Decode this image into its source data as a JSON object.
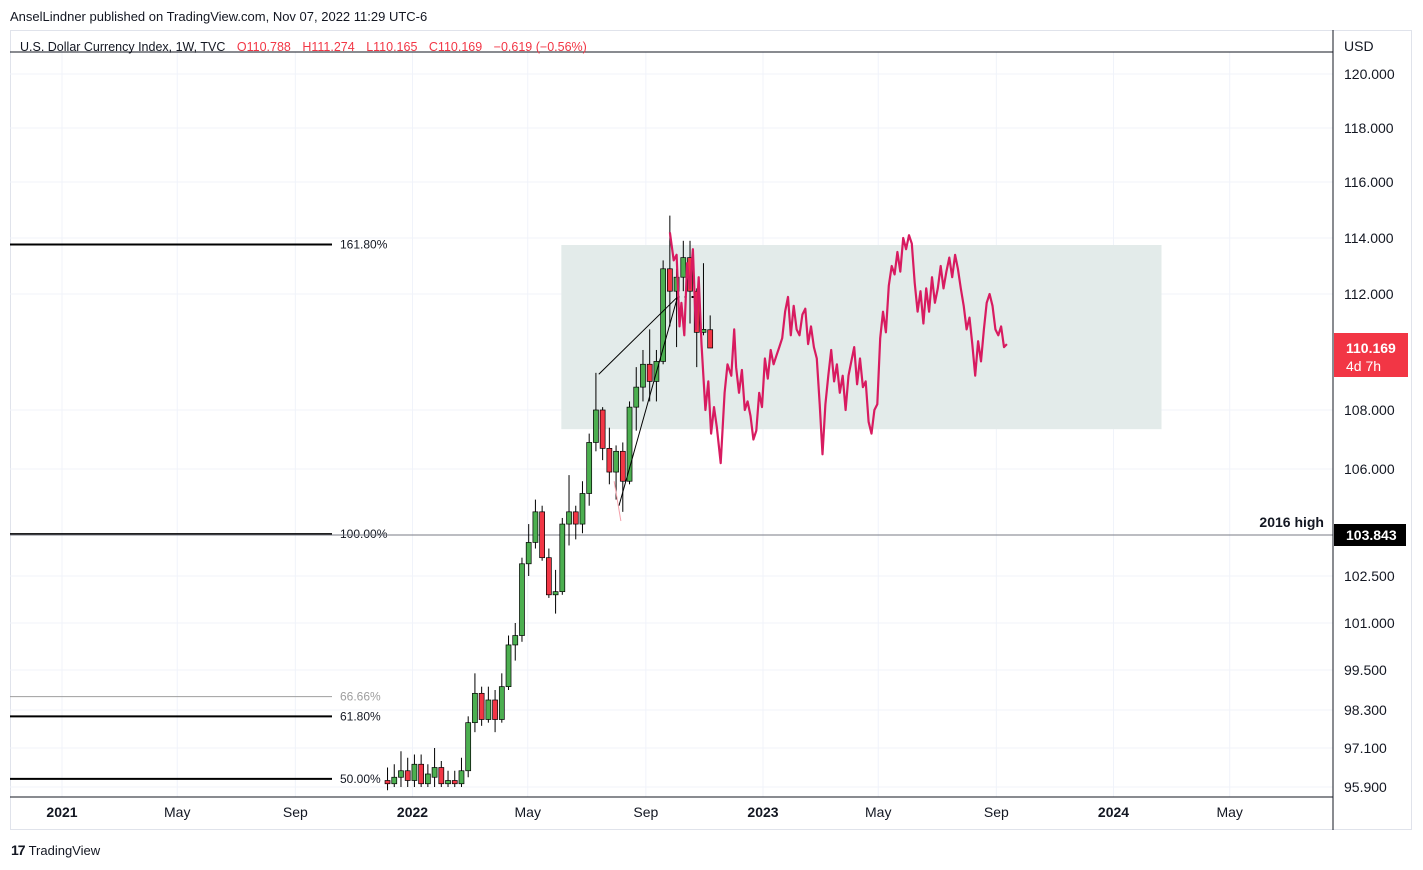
{
  "publisher_line": "AnselLindner published on TradingView.com, Nov 07, 2022 11:29 UTC-6",
  "legend": {
    "symbol": "U.S. Dollar Currency Index, 1W, TVC",
    "open": "O110.788",
    "high": "H111.274",
    "low": "L110.165",
    "close": "C110.169",
    "change": "−0.619 (−0.56%)"
  },
  "currency": "USD",
  "last_price": {
    "value": "110.169",
    "countdown": "4d 7h"
  },
  "horizontal_line": {
    "label": "2016 high",
    "value": "103.843",
    "price": 103.843
  },
  "footer": {
    "logo_text": "TradingView"
  },
  "colors": {
    "up": "#4caf50",
    "down": "#f23645",
    "projection": "#d81b60",
    "zone": "#e3ebea",
    "axis_text": "#131722",
    "grid": "#f0f3fa",
    "fib_minor": "#9e9e9e"
  },
  "chart_data": {
    "type": "candlestick",
    "interval": "1W",
    "x_axis_labels": [
      "2021",
      "May",
      "Sep",
      "2022",
      "May",
      "Sep",
      "2023",
      "May",
      "Sep",
      "2024",
      "May"
    ],
    "y_axis_ticks": [
      "120.000",
      "118.000",
      "116.000",
      "114.000",
      "112.000",
      "110.169",
      "108.000",
      "106.000",
      "103.843",
      "102.500",
      "101.000",
      "99.500",
      "98.300",
      "97.100",
      "95.900"
    ],
    "y_tick_values": [
      120.0,
      118.0,
      116.0,
      114.0,
      112.0,
      108.0,
      106.0,
      102.5,
      101.0,
      99.5,
      98.3,
      97.1,
      95.9
    ],
    "fib_levels": [
      {
        "label": "161.80%",
        "price": 113.77,
        "style": "major"
      },
      {
        "label": "100.00%",
        "price": 103.87,
        "style": "major"
      },
      {
        "label": "66.66%",
        "price": 98.7,
        "style": "minor"
      },
      {
        "label": "61.80%",
        "price": 98.1,
        "style": "major"
      },
      {
        "label": "50.00%",
        "price": 96.15,
        "style": "major"
      }
    ],
    "zone": {
      "price_top": 113.75,
      "price_bottom": 107.35,
      "date_start": "2022-06-05",
      "date_end": "2024-02-20"
    },
    "candles": [
      {
        "date": "2021-12-06",
        "open": 96.1,
        "high": 96.5,
        "low": 95.8,
        "close": 96.0
      },
      {
        "date": "2021-12-13",
        "open": 96.0,
        "high": 96.6,
        "low": 95.9,
        "close": 96.2
      },
      {
        "date": "2021-12-20",
        "open": 96.2,
        "high": 97.0,
        "low": 95.9,
        "close": 96.4
      },
      {
        "date": "2021-12-27",
        "open": 96.4,
        "high": 96.8,
        "low": 95.9,
        "close": 96.1
      },
      {
        "date": "2022-01-03",
        "open": 96.1,
        "high": 96.9,
        "low": 95.9,
        "close": 96.6
      },
      {
        "date": "2022-01-10",
        "open": 96.6,
        "high": 96.9,
        "low": 95.9,
        "close": 96.0
      },
      {
        "date": "2022-01-17",
        "open": 96.0,
        "high": 96.6,
        "low": 95.9,
        "close": 96.3
      },
      {
        "date": "2022-01-24",
        "open": 96.2,
        "high": 97.1,
        "low": 95.9,
        "close": 96.5
      },
      {
        "date": "2022-01-31",
        "open": 96.5,
        "high": 96.7,
        "low": 95.9,
        "close": 96.0
      },
      {
        "date": "2022-02-07",
        "open": 96.0,
        "high": 96.4,
        "low": 95.9,
        "close": 96.1
      },
      {
        "date": "2022-02-14",
        "open": 96.1,
        "high": 96.4,
        "low": 95.9,
        "close": 96.0
      },
      {
        "date": "2022-02-21",
        "open": 96.0,
        "high": 96.8,
        "low": 95.9,
        "close": 96.4
      },
      {
        "date": "2022-02-28",
        "open": 96.4,
        "high": 98.1,
        "low": 96.2,
        "close": 97.9
      },
      {
        "date": "2022-03-07",
        "open": 97.9,
        "high": 99.4,
        "low": 97.6,
        "close": 98.8
      },
      {
        "date": "2022-03-14",
        "open": 98.8,
        "high": 99.0,
        "low": 97.8,
        "close": 98.0
      },
      {
        "date": "2022-03-21",
        "open": 98.0,
        "high": 99.0,
        "low": 97.9,
        "close": 98.6
      },
      {
        "date": "2022-03-28",
        "open": 98.6,
        "high": 98.9,
        "low": 97.6,
        "close": 98.0
      },
      {
        "date": "2022-04-04",
        "open": 98.0,
        "high": 99.4,
        "low": 97.9,
        "close": 99.0
      },
      {
        "date": "2022-04-11",
        "open": 99.0,
        "high": 100.6,
        "low": 98.9,
        "close": 100.3
      },
      {
        "date": "2022-04-18",
        "open": 100.3,
        "high": 101.0,
        "low": 99.8,
        "close": 100.6
      },
      {
        "date": "2022-04-25",
        "open": 100.6,
        "high": 103.1,
        "low": 100.4,
        "close": 102.9
      },
      {
        "date": "2022-05-02",
        "open": 102.9,
        "high": 104.2,
        "low": 102.5,
        "close": 103.6
      },
      {
        "date": "2022-05-09",
        "open": 103.6,
        "high": 105.0,
        "low": 103.4,
        "close": 104.6
      },
      {
        "date": "2022-05-16",
        "open": 104.6,
        "high": 104.8,
        "low": 103.0,
        "close": 103.1
      },
      {
        "date": "2022-05-23",
        "open": 103.1,
        "high": 103.4,
        "low": 101.8,
        "close": 101.9
      },
      {
        "date": "2022-05-30",
        "open": 101.9,
        "high": 102.7,
        "low": 101.3,
        "close": 102.0
      },
      {
        "date": "2022-06-06",
        "open": 102.0,
        "high": 104.4,
        "low": 101.9,
        "close": 104.2
      },
      {
        "date": "2022-06-13",
        "open": 104.2,
        "high": 105.8,
        "low": 103.5,
        "close": 104.6
      },
      {
        "date": "2022-06-20",
        "open": 104.6,
        "high": 104.8,
        "low": 103.7,
        "close": 104.2
      },
      {
        "date": "2022-06-27",
        "open": 104.2,
        "high": 105.6,
        "low": 103.9,
        "close": 105.2
      },
      {
        "date": "2022-07-04",
        "open": 105.2,
        "high": 107.2,
        "low": 104.8,
        "close": 106.9
      },
      {
        "date": "2022-07-11",
        "open": 106.9,
        "high": 109.3,
        "low": 106.6,
        "close": 108.0
      },
      {
        "date": "2022-07-18",
        "open": 108.0,
        "high": 108.1,
        "low": 106.3,
        "close": 106.7
      },
      {
        "date": "2022-07-25",
        "open": 106.7,
        "high": 107.4,
        "low": 105.5,
        "close": 105.9
      },
      {
        "date": "2022-08-01",
        "open": 105.9,
        "high": 106.8,
        "low": 105.0,
        "close": 106.6
      },
      {
        "date": "2022-08-08",
        "open": 106.6,
        "high": 106.9,
        "low": 104.6,
        "close": 105.6
      },
      {
        "date": "2022-08-15",
        "open": 105.6,
        "high": 108.3,
        "low": 105.5,
        "close": 108.1
      },
      {
        "date": "2022-08-22",
        "open": 108.1,
        "high": 109.5,
        "low": 107.3,
        "close": 108.8
      },
      {
        "date": "2022-08-29",
        "open": 108.8,
        "high": 110.1,
        "low": 108.3,
        "close": 109.6
      },
      {
        "date": "2022-09-05",
        "open": 109.6,
        "high": 110.8,
        "low": 108.3,
        "close": 109.0
      },
      {
        "date": "2022-09-12",
        "open": 109.0,
        "high": 110.1,
        "low": 108.3,
        "close": 109.7
      },
      {
        "date": "2022-09-19",
        "open": 109.7,
        "high": 113.2,
        "low": 109.6,
        "close": 112.9
      },
      {
        "date": "2022-09-26",
        "open": 112.9,
        "high": 114.8,
        "low": 110.9,
        "close": 112.1
      },
      {
        "date": "2022-10-03",
        "open": 112.1,
        "high": 112.9,
        "low": 110.2,
        "close": 112.6
      },
      {
        "date": "2022-10-10",
        "open": 112.6,
        "high": 113.9,
        "low": 112.1,
        "close": 113.3
      },
      {
        "date": "2022-10-17",
        "open": 113.3,
        "high": 113.9,
        "low": 111.0,
        "close": 112.1
      },
      {
        "date": "2022-10-24",
        "open": 112.1,
        "high": 112.2,
        "low": 109.5,
        "close": 110.7
      },
      {
        "date": "2022-10-31",
        "open": 110.7,
        "high": 113.1,
        "low": 110.6,
        "close": 110.8
      },
      {
        "date": "2022-11-07",
        "open": 110.788,
        "high": 111.274,
        "low": 110.165,
        "close": 110.169
      }
    ],
    "drawings": {
      "abc_lines": [
        [
          {
            "date": "2022-07-14",
            "price": 109.25
          },
          {
            "date": "2022-10-04",
            "price": 111.9
          }
        ],
        [
          {
            "date": "2022-08-04",
            "price": 104.8
          },
          {
            "date": "2022-10-04",
            "price": 111.9
          }
        ]
      ],
      "arrow_tail": [
        {
          "date": "2022-07-30",
          "price": 105.6
        },
        {
          "date": "2022-08-06",
          "price": 104.3
        }
      ],
      "dotted_marker": [
        {
          "date": "2022-10-04",
          "price": 111.9
        },
        {
          "date": "2022-10-23",
          "price": 111.9
        }
      ]
    },
    "projection_path": [
      [
        "2022-09-26",
        114.2
      ],
      [
        "2022-09-30",
        113.2
      ],
      [
        "2022-10-03",
        113.4
      ],
      [
        "2022-10-06",
        110.9
      ],
      [
        "2022-10-08",
        111.7
      ],
      [
        "2022-10-11",
        110.6
      ],
      [
        "2022-10-14",
        113.1
      ],
      [
        "2022-10-17",
        112.2
      ],
      [
        "2022-10-20",
        113.6
      ],
      [
        "2022-10-23",
        110.8
      ],
      [
        "2022-10-26",
        112.6
      ],
      [
        "2022-10-29",
        110.3
      ],
      [
        "2022-11-02",
        108.0
      ],
      [
        "2022-11-05",
        109.0
      ],
      [
        "2022-11-08",
        107.2
      ],
      [
        "2022-11-11",
        108.1
      ],
      [
        "2022-11-14",
        107.4
      ],
      [
        "2022-11-18",
        106.2
      ],
      [
        "2022-11-22",
        108.6
      ],
      [
        "2022-11-25",
        109.6
      ],
      [
        "2022-11-29",
        109.2
      ],
      [
        "2022-12-02",
        110.8
      ],
      [
        "2022-12-04",
        109.5
      ],
      [
        "2022-12-07",
        108.6
      ],
      [
        "2022-12-10",
        109.4
      ],
      [
        "2022-12-13",
        108.0
      ],
      [
        "2022-12-16",
        108.3
      ],
      [
        "2022-12-19",
        107.8
      ],
      [
        "2022-12-22",
        107.0
      ],
      [
        "2022-12-25",
        107.3
      ],
      [
        "2022-12-28",
        108.6
      ],
      [
        "2022-12-31",
        108.1
      ],
      [
        "2023-01-03",
        109.8
      ],
      [
        "2023-01-06",
        109.1
      ],
      [
        "2023-01-09",
        110.1
      ],
      [
        "2023-01-12",
        109.6
      ],
      [
        "2023-01-15",
        109.9
      ],
      [
        "2023-01-18",
        110.2
      ],
      [
        "2023-01-21",
        110.5
      ],
      [
        "2023-01-24",
        111.4
      ],
      [
        "2023-01-27",
        111.9
      ],
      [
        "2023-01-30",
        110.6
      ],
      [
        "2023-02-02",
        111.6
      ],
      [
        "2023-02-05",
        110.8
      ],
      [
        "2023-02-08",
        110.6
      ],
      [
        "2023-02-11",
        111.3
      ],
      [
        "2023-02-14",
        111.5
      ],
      [
        "2023-02-17",
        110.3
      ],
      [
        "2023-02-20",
        110.9
      ],
      [
        "2023-02-23",
        110.2
      ],
      [
        "2023-02-26",
        109.8
      ],
      [
        "2023-03-01",
        108.2
      ],
      [
        "2023-03-04",
        106.5
      ],
      [
        "2023-03-07",
        108.2
      ],
      [
        "2023-03-10",
        109.2
      ],
      [
        "2023-03-13",
        110.1
      ],
      [
        "2023-03-16",
        109.0
      ],
      [
        "2023-03-19",
        109.6
      ],
      [
        "2023-03-22",
        108.6
      ],
      [
        "2023-03-25",
        109.2
      ],
      [
        "2023-03-28",
        108.0
      ],
      [
        "2023-03-31",
        109.2
      ],
      [
        "2023-04-03",
        109.7
      ],
      [
        "2023-04-06",
        110.2
      ],
      [
        "2023-04-09",
        108.9
      ],
      [
        "2023-04-12",
        109.8
      ],
      [
        "2023-04-15",
        108.8
      ],
      [
        "2023-04-18",
        109.0
      ],
      [
        "2023-04-21",
        107.6
      ],
      [
        "2023-04-24",
        107.2
      ],
      [
        "2023-04-27",
        108.0
      ],
      [
        "2023-04-30",
        108.2
      ],
      [
        "2023-05-03",
        110.5
      ],
      [
        "2023-05-06",
        111.4
      ],
      [
        "2023-05-09",
        110.7
      ],
      [
        "2023-05-12",
        112.3
      ],
      [
        "2023-05-15",
        113.0
      ],
      [
        "2023-05-18",
        112.7
      ],
      [
        "2023-05-21",
        113.5
      ],
      [
        "2023-05-24",
        112.8
      ],
      [
        "2023-05-27",
        114.0
      ],
      [
        "2023-05-30",
        113.6
      ],
      [
        "2023-06-02",
        114.1
      ],
      [
        "2023-06-05",
        113.8
      ],
      [
        "2023-06-08",
        112.4
      ],
      [
        "2023-06-11",
        111.4
      ],
      [
        "2023-06-14",
        112.1
      ],
      [
        "2023-06-17",
        111.0
      ],
      [
        "2023-06-20",
        112.2
      ],
      [
        "2023-06-23",
        111.4
      ],
      [
        "2023-06-26",
        112.6
      ],
      [
        "2023-06-29",
        111.7
      ],
      [
        "2023-07-02",
        112.2
      ],
      [
        "2023-07-05",
        113.0
      ],
      [
        "2023-07-08",
        112.2
      ],
      [
        "2023-07-11",
        112.8
      ],
      [
        "2023-07-14",
        113.3
      ],
      [
        "2023-07-17",
        112.6
      ],
      [
        "2023-07-20",
        113.4
      ],
      [
        "2023-07-23",
        112.9
      ],
      [
        "2023-07-26",
        112.2
      ],
      [
        "2023-07-29",
        111.6
      ],
      [
        "2023-08-01",
        110.8
      ],
      [
        "2023-08-04",
        111.2
      ],
      [
        "2023-08-07",
        110.3
      ],
      [
        "2023-08-10",
        109.2
      ],
      [
        "2023-08-13",
        110.4
      ],
      [
        "2023-08-16",
        109.7
      ],
      [
        "2023-08-19",
        110.8
      ],
      [
        "2023-08-22",
        111.7
      ],
      [
        "2023-08-25",
        112.0
      ],
      [
        "2023-08-28",
        111.6
      ],
      [
        "2023-08-31",
        110.8
      ],
      [
        "2023-09-03",
        110.6
      ],
      [
        "2023-09-06",
        110.9
      ],
      [
        "2023-09-09",
        110.2
      ],
      [
        "2023-09-12",
        110.3
      ]
    ]
  }
}
